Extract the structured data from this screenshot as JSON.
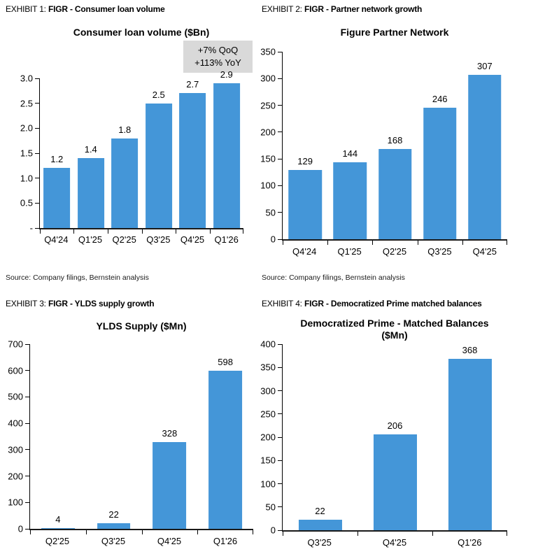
{
  "styles": {
    "bar_color": "#4496d8",
    "annotation_bg": "#d9d9d9",
    "axis_color": "#000000"
  },
  "chart_data": [
    {
      "type": "bar",
      "exhibit_label": "EXHIBIT 1:",
      "exhibit_title": "FIGR - Consumer loan volume",
      "title": "Consumer loan volume ($Bn)",
      "annotation": {
        "line1": "+7% QoQ",
        "line2": "+113% YoY"
      },
      "categories": [
        "Q4'24",
        "Q1'25",
        "Q2'25",
        "Q3'25",
        "Q4'25",
        "Q1'26"
      ],
      "values": [
        1.2,
        1.4,
        1.8,
        2.5,
        2.7,
        2.9
      ],
      "value_labels": [
        "1.2",
        "1.4",
        "1.8",
        "2.5",
        "2.7",
        "2.9"
      ],
      "ylim": [
        0,
        3.0
      ],
      "yticks": [
        "3.0",
        "2.5",
        "2.0",
        "1.5",
        "1.0",
        "0.5",
        "-"
      ],
      "grid": false,
      "legend": "none",
      "source": "Source: Company filings, Bernstein analysis"
    },
    {
      "type": "bar",
      "exhibit_label": "EXHIBIT 2:",
      "exhibit_title": "FIGR - Partner network growth",
      "title": "Figure Partner Network",
      "categories": [
        "Q4'24",
        "Q1'25",
        "Q2'25",
        "Q3'25",
        "Q4'25"
      ],
      "values": [
        129,
        144,
        168,
        246,
        307
      ],
      "value_labels": [
        "129",
        "144",
        "168",
        "246",
        "307"
      ],
      "ylim": [
        0,
        350
      ],
      "yticks": [
        "350",
        "300",
        "250",
        "200",
        "150",
        "100",
        "50",
        "0"
      ],
      "grid": false,
      "legend": "none",
      "source": "Source: Company filings, Bernstein analysis"
    },
    {
      "type": "bar",
      "exhibit_label": "EXHIBIT 3:",
      "exhibit_title": "FIGR - YLDS supply growth",
      "title": "YLDS Supply ($Mn)",
      "categories": [
        "Q2'25",
        "Q3'25",
        "Q4'25",
        "Q1'26"
      ],
      "values": [
        4,
        22,
        328,
        598
      ],
      "value_labels": [
        "4",
        "22",
        "328",
        "598"
      ],
      "ylim": [
        0,
        700
      ],
      "yticks": [
        "700",
        "600",
        "500",
        "400",
        "300",
        "200",
        "100",
        "0"
      ],
      "grid": false,
      "legend": "none"
    },
    {
      "type": "bar",
      "exhibit_label": "EXHIBIT 4:",
      "exhibit_title": "FIGR - Democratized Prime matched balances",
      "title": "Democratized Prime - Matched Balances",
      "title_line2": "($Mn)",
      "categories": [
        "Q3'25",
        "Q4'25",
        "Q1'26"
      ],
      "values": [
        22,
        206,
        368
      ],
      "value_labels": [
        "22",
        "206",
        "368"
      ],
      "ylim": [
        0,
        400
      ],
      "yticks": [
        "400",
        "350",
        "300",
        "250",
        "200",
        "150",
        "100",
        "50",
        "0"
      ],
      "grid": false,
      "legend": "none"
    }
  ]
}
